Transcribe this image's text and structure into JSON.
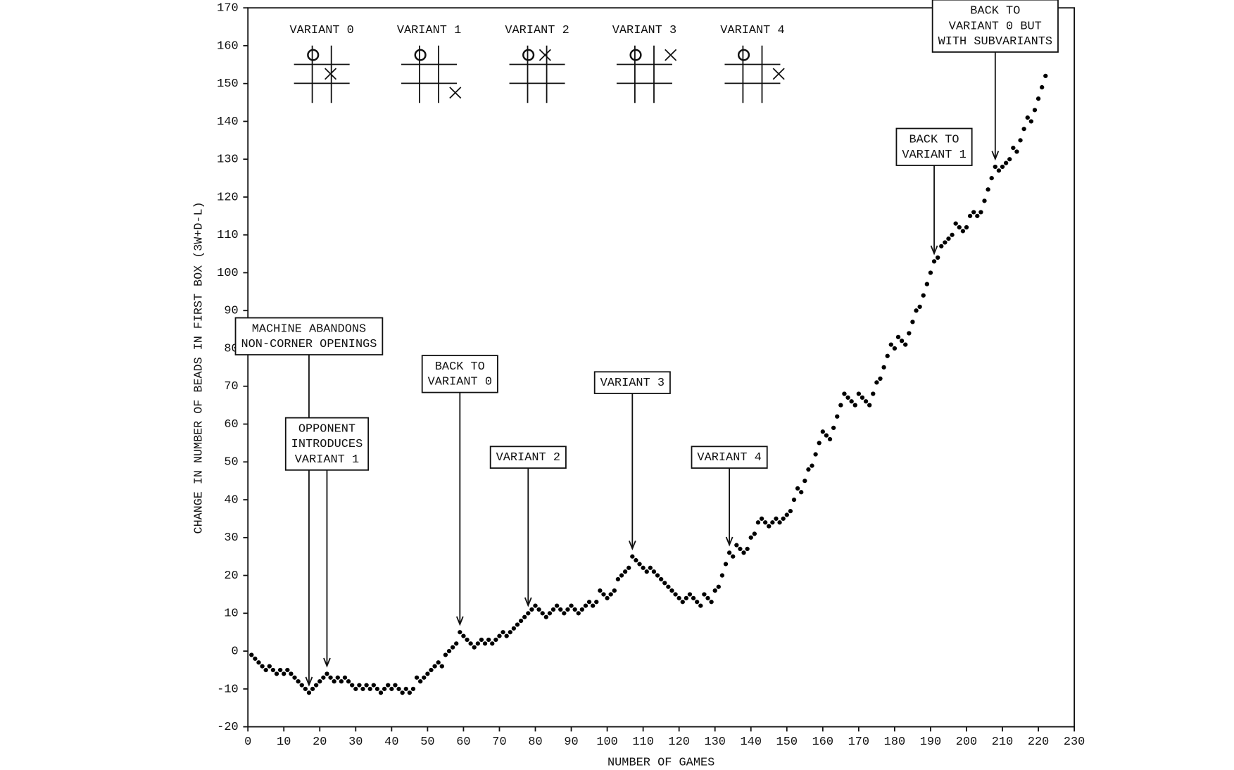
{
  "chart_data": {
    "type": "scatter",
    "xlabel": "NUMBER OF GAMES",
    "ylabel": "CHANGE IN NUMBER OF BEADS IN FIRST BOX (3W+D-L)",
    "color": "#000000",
    "x": [
      1,
      2,
      3,
      4,
      5,
      6,
      7,
      8,
      9,
      10,
      11,
      12,
      13,
      14,
      15,
      16,
      17,
      18,
      19,
      20,
      21,
      22,
      23,
      24,
      25,
      26,
      27,
      28,
      29,
      30,
      31,
      32,
      33,
      34,
      35,
      36,
      37,
      38,
      39,
      40,
      41,
      42,
      43,
      44,
      45,
      46,
      47,
      48,
      49,
      50,
      51,
      52,
      53,
      54,
      55,
      56,
      57,
      58,
      59,
      60,
      61,
      62,
      63,
      64,
      65,
      66,
      67,
      68,
      69,
      70,
      71,
      72,
      73,
      74,
      75,
      76,
      77,
      78,
      79,
      80,
      81,
      82,
      83,
      84,
      85,
      86,
      87,
      88,
      89,
      90,
      91,
      92,
      93,
      94,
      95,
      96,
      97,
      98,
      99,
      100,
      101,
      102,
      103,
      104,
      105,
      106,
      107,
      108,
      109,
      110,
      111,
      112,
      113,
      114,
      115,
      116,
      117,
      118,
      119,
      120,
      121,
      122,
      123,
      124,
      125,
      126,
      127,
      128,
      129,
      130,
      131,
      132,
      133,
      134,
      135,
      136,
      137,
      138,
      139,
      140,
      141,
      142,
      143,
      144,
      145,
      146,
      147,
      148,
      149,
      150,
      151,
      152,
      153,
      154,
      155,
      156,
      157,
      158,
      159,
      160,
      161,
      162,
      163,
      164,
      165,
      166,
      167,
      168,
      169,
      170,
      171,
      172,
      173,
      174,
      175,
      176,
      177,
      178,
      179,
      180,
      181,
      182,
      183,
      184,
      185,
      186,
      187,
      188,
      189,
      190,
      191,
      192,
      193,
      194,
      195,
      196,
      197,
      198,
      199,
      200,
      201,
      202,
      203,
      204,
      205,
      206,
      207,
      208,
      209,
      210,
      211,
      212,
      213,
      214,
      215,
      216,
      217,
      218,
      219,
      220,
      221,
      222
    ],
    "values": [
      -1,
      -2,
      -3,
      -4,
      -5,
      -4,
      -5,
      -6,
      -5,
      -6,
      -5,
      -6,
      -7,
      -8,
      -9,
      -10,
      -11,
      -10,
      -9,
      -8,
      -7,
      -6,
      -7,
      -8,
      -7,
      -8,
      -7,
      -8,
      -9,
      -10,
      -9,
      -10,
      -9,
      -10,
      -9,
      -10,
      -11,
      -10,
      -9,
      -10,
      -9,
      -10,
      -11,
      -10,
      -11,
      -10,
      -7,
      -8,
      -7,
      -6,
      -5,
      -4,
      -3,
      -4,
      -1,
      0,
      1,
      2,
      5,
      4,
      3,
      2,
      1,
      2,
      3,
      2,
      3,
      2,
      3,
      4,
      5,
      4,
      5,
      6,
      7,
      8,
      9,
      10,
      11,
      12,
      11,
      10,
      9,
      10,
      11,
      12,
      11,
      10,
      11,
      12,
      11,
      10,
      11,
      12,
      13,
      12,
      13,
      16,
      15,
      14,
      15,
      16,
      19,
      20,
      21,
      22,
      25,
      24,
      23,
      22,
      21,
      22,
      21,
      20,
      19,
      18,
      17,
      16,
      15,
      14,
      13,
      14,
      15,
      14,
      13,
      12,
      15,
      14,
      13,
      16,
      17,
      20,
      23,
      26,
      25,
      28,
      27,
      26,
      27,
      30,
      31,
      34,
      35,
      34,
      33,
      34,
      35,
      34,
      35,
      36,
      37,
      40,
      43,
      42,
      45,
      48,
      49,
      52,
      55,
      58,
      57,
      56,
      59,
      62,
      65,
      68,
      67,
      66,
      65,
      68,
      67,
      66,
      65,
      68,
      71,
      72,
      75,
      78,
      81,
      80,
      83,
      82,
      81,
      84,
      87,
      90,
      91,
      94,
      97,
      100,
      103,
      104,
      107,
      108,
      109,
      110,
      113,
      112,
      111,
      112,
      115,
      116,
      115,
      116,
      119,
      122,
      125,
      128,
      127,
      128,
      129,
      130,
      133,
      132,
      135,
      138,
      141,
      140,
      143,
      146,
      149,
      152
    ],
    "xlim": [
      0,
      230
    ],
    "xticks": [
      0,
      10,
      20,
      30,
      40,
      50,
      60,
      70,
      80,
      90,
      100,
      110,
      120,
      130,
      140,
      150,
      160,
      170,
      180,
      190,
      200,
      210,
      220,
      230
    ],
    "ylim": [
      -20,
      170
    ],
    "yticks": [
      -20,
      -10,
      0,
      10,
      20,
      30,
      40,
      50,
      60,
      70,
      80,
      90,
      100,
      110,
      120,
      130,
      140,
      150,
      160,
      170
    ],
    "variants": [
      "VARIANT 0",
      "VARIANT 1",
      "VARIANT 2",
      "VARIANT 3",
      "VARIANT 4"
    ],
    "annotations": [
      {
        "x": 17,
        "lines": [
          "MACHINE ABANDONS",
          "NON-CORNER OPENINGS"
        ]
      },
      {
        "x": 22,
        "lines": [
          "OPPONENT",
          "INTRODUCES",
          "VARIANT 1"
        ]
      },
      {
        "x": 59,
        "lines": [
          "BACK TO",
          "VARIANT 0"
        ]
      },
      {
        "x": 78,
        "lines": [
          "VARIANT 2"
        ]
      },
      {
        "x": 107,
        "lines": [
          "VARIANT 3"
        ]
      },
      {
        "x": 134,
        "lines": [
          "VARIANT 4"
        ]
      },
      {
        "x": 191,
        "lines": [
          "BACK TO",
          "VARIANT 1"
        ]
      },
      {
        "x": 208,
        "lines": [
          "BACK TO",
          "VARIANT 0 BUT",
          "WITH SUBVARIANTS"
        ]
      }
    ]
  }
}
